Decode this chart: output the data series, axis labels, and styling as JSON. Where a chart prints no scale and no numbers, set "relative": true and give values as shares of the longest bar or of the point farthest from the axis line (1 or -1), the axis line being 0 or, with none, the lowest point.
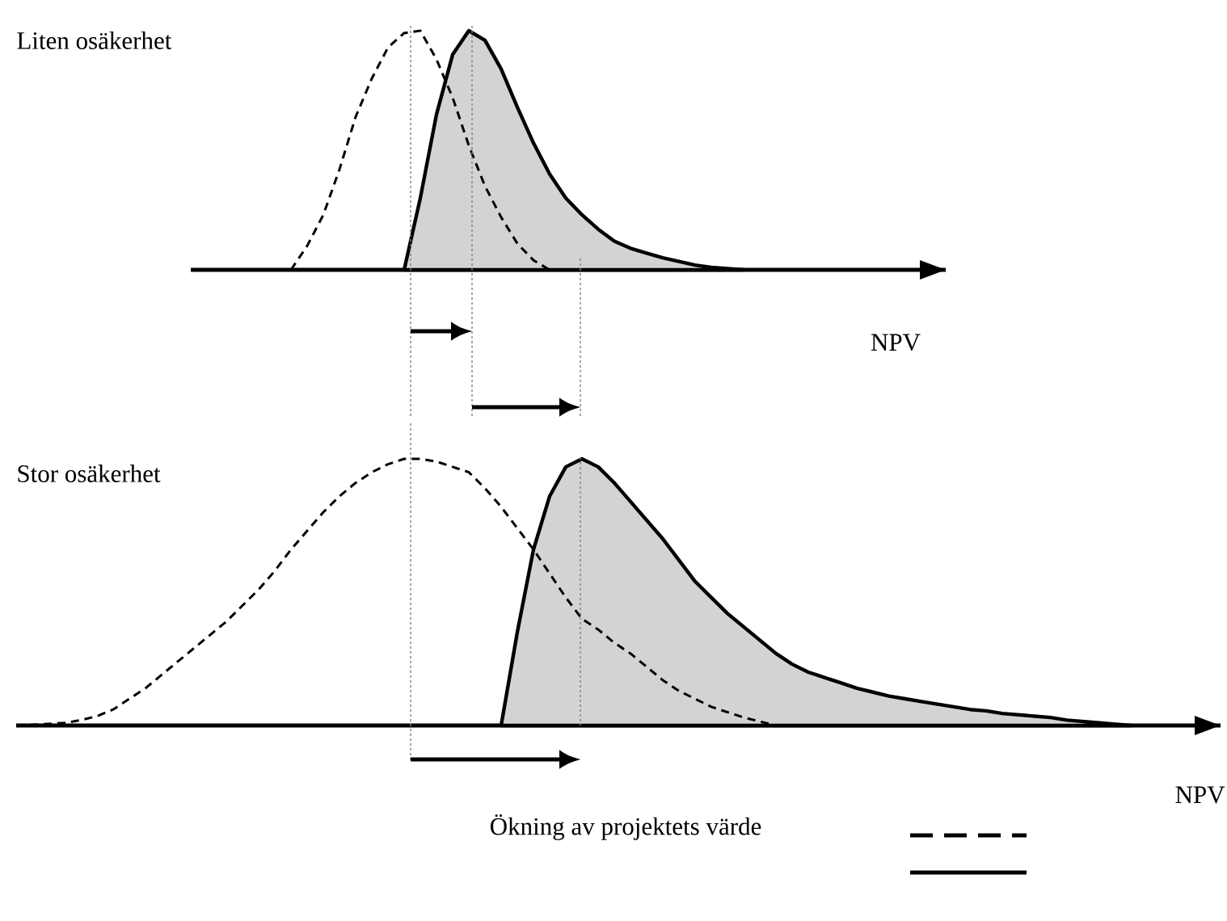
{
  "chart_data": [
    {
      "type": "line",
      "title": "Liten osäkerhet",
      "xlabel": "NPV",
      "relative": true,
      "categories": [
        null,
        null,
        null,
        null,
        null,
        null,
        null,
        null,
        null,
        null,
        null,
        null,
        null,
        null,
        null,
        null,
        null,
        null,
        null,
        null,
        null,
        null,
        null,
        null,
        null,
        null,
        null,
        null,
        null,
        null,
        null,
        null,
        null,
        null,
        null,
        null,
        null,
        null,
        null,
        null,
        null,
        null,
        null,
        null,
        null,
        null,
        null
      ],
      "series": [
        {
          "type": "area",
          "color": "#d3d3d3",
          "line_style": "solid",
          "values": [
            null,
            null,
            null,
            null,
            null,
            null,
            null,
            null,
            null,
            null,
            null,
            null,
            null,
            0,
            0.3,
            0.65,
            0.9,
            1,
            0.96,
            0.84,
            0.68,
            0.53,
            0.4,
            0.3,
            0.23,
            0.17,
            0.12,
            0.09,
            0.07,
            0.05,
            0.035,
            0.02,
            0.01,
            0.005,
            0,
            null,
            null,
            null,
            null,
            null,
            null,
            null,
            null,
            null,
            null,
            null,
            null
          ]
        },
        {
          "color": "#000000",
          "line_style": "dashed",
          "values": [
            null,
            null,
            null,
            null,
            null,
            null,
            0,
            0.1,
            0.23,
            0.42,
            0.64,
            0.8,
            0.93,
            0.99,
            1,
            0.88,
            0.72,
            0.52,
            0.35,
            0.22,
            0.11,
            0.04,
            0,
            null,
            null,
            null,
            null,
            null,
            null,
            null,
            null,
            null,
            null,
            null,
            null,
            null,
            null,
            null,
            null,
            null,
            null,
            null,
            null,
            null,
            null,
            null,
            null
          ]
        }
      ]
    },
    {
      "type": "line",
      "title": "Stor osäkerhet",
      "xlabel": "NPV",
      "relative": true,
      "categories": [
        null,
        null,
        null,
        null,
        null,
        null,
        null,
        null,
        null,
        null,
        null,
        null,
        null,
        null,
        null,
        null,
        null,
        null,
        null,
        null,
        null,
        null,
        null,
        null,
        null,
        null,
        null,
        null,
        null,
        null,
        null,
        null,
        null,
        null,
        null,
        null,
        null,
        null,
        null,
        null,
        null,
        null,
        null,
        null,
        null,
        null,
        null,
        null,
        null,
        null,
        null,
        null,
        null,
        null,
        null,
        null,
        null,
        null,
        null,
        null,
        null,
        null,
        null,
        null,
        null,
        null,
        null,
        null,
        null,
        null,
        null,
        null,
        null,
        null,
        null
      ],
      "series": [
        {
          "type": "area",
          "color": "#d3d3d3",
          "line_style": "solid",
          "values": [
            null,
            null,
            null,
            null,
            null,
            null,
            null,
            null,
            null,
            null,
            null,
            null,
            null,
            null,
            null,
            null,
            null,
            null,
            null,
            null,
            null,
            null,
            null,
            null,
            null,
            null,
            null,
            null,
            null,
            null,
            0,
            0.35,
            0.66,
            0.86,
            0.97,
            1,
            0.97,
            0.91,
            0.84,
            0.77,
            0.7,
            0.62,
            0.54,
            0.48,
            0.42,
            0.37,
            0.32,
            0.27,
            0.23,
            0.2,
            0.18,
            0.16,
            0.14,
            0.125,
            0.11,
            0.1,
            0.09,
            0.08,
            0.07,
            0.06,
            0.055,
            0.045,
            0.04,
            0.035,
            0.03,
            0.02,
            0.015,
            0.01,
            0.005,
            0,
            null,
            null,
            null,
            null,
            null
          ]
        },
        {
          "color": "#000000",
          "line_style": "dashed",
          "values": [
            0,
            0.003,
            0.006,
            0.01,
            0.02,
            0.035,
            0.06,
            0.1,
            0.14,
            0.19,
            0.24,
            0.29,
            0.34,
            0.39,
            0.45,
            0.51,
            0.58,
            0.66,
            0.73,
            0.8,
            0.86,
            0.91,
            0.95,
            0.98,
            1,
            1,
            0.99,
            0.97,
            0.95,
            0.89,
            0.82,
            0.74,
            0.66,
            0.57,
            0.48,
            0.4,
            0.36,
            0.31,
            0.27,
            0.22,
            0.17,
            0.13,
            0.1,
            0.07,
            0.05,
            0.03,
            0.015,
            0,
            0,
            0,
            null,
            null,
            null,
            null,
            null,
            null,
            null,
            null,
            null,
            null,
            null,
            null,
            null,
            null,
            null,
            null,
            null,
            null,
            null,
            null,
            null,
            null,
            null,
            null,
            null
          ]
        }
      ],
      "annotations": [
        "Ökning av projektets värde"
      ]
    }
  ]
}
